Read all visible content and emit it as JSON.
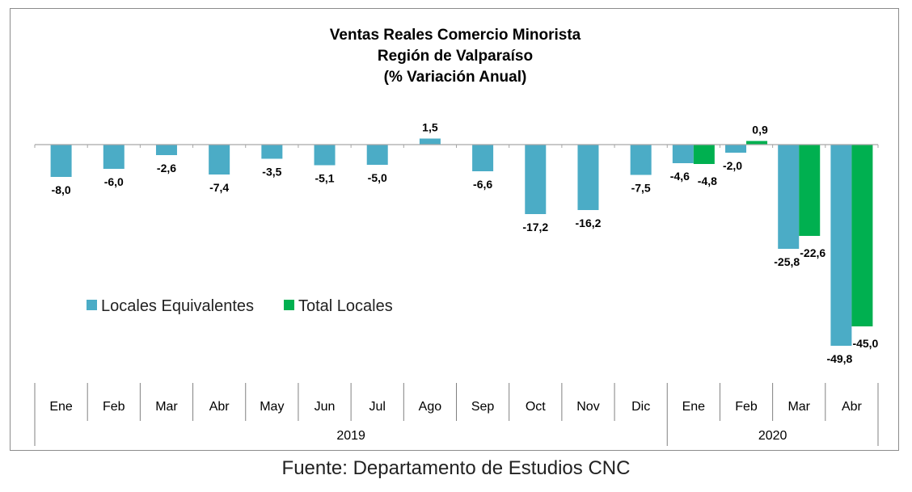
{
  "chart_data": {
    "type": "bar",
    "title": [
      "Ventas Reales Comercio Minorista",
      "Región de Valparaíso",
      "(% Variación Anual)"
    ],
    "categories": [
      "Ene",
      "Feb",
      "Mar",
      "Abr",
      "May",
      "Jun",
      "Jul",
      "Ago",
      "Sep",
      "Oct",
      "Nov",
      "Dic",
      "Ene",
      "Feb",
      "Mar",
      "Abr"
    ],
    "groups": [
      {
        "label": "2019",
        "start": 0,
        "end": 11
      },
      {
        "label": "2020",
        "start": 12,
        "end": 15
      }
    ],
    "series": [
      {
        "name": "Locales Equivalentes",
        "color": "#4bacc6",
        "values": [
          -8.0,
          -6.0,
          -2.6,
          -7.4,
          -3.5,
          -5.1,
          -5.0,
          1.5,
          -6.6,
          -17.2,
          -16.2,
          -7.5,
          -4.6,
          -2.0,
          -25.8,
          -49.8
        ],
        "labels": [
          "-8,0",
          "-6,0",
          "-2,6",
          "-7,4",
          "-3,5",
          "-5,1",
          "-5,0",
          "1,5",
          "-6,6",
          "-17,2",
          "-16,2",
          "-7,5",
          "-4,6",
          "-2,0",
          "-25,8",
          "-49,8"
        ]
      },
      {
        "name": "Total Locales",
        "color": "#00b050",
        "values": [
          null,
          null,
          null,
          null,
          null,
          null,
          null,
          null,
          null,
          null,
          null,
          null,
          -4.8,
          0.9,
          -22.6,
          -45.0
        ],
        "labels": [
          null,
          null,
          null,
          null,
          null,
          null,
          null,
          null,
          null,
          null,
          null,
          null,
          "-4,8",
          "0,9",
          "-22,6",
          "-45,0"
        ]
      }
    ],
    "legend_position": "middle-left",
    "grid": false
  },
  "source": "Fuente: Departamento de Estudios CNC"
}
